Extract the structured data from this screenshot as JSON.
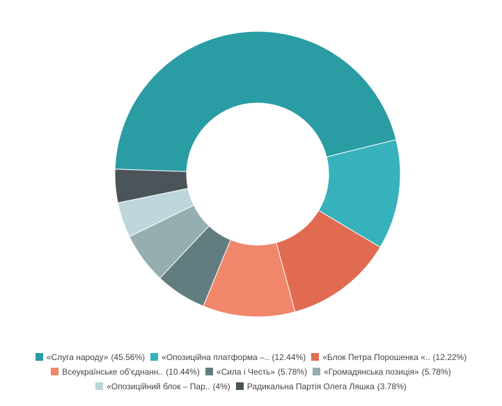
{
  "chart_data": {
    "type": "donut",
    "categories": [
      "«Слуга народу»",
      "«Опозиційна платформа –..",
      "«Блок Петра Порошенка «..",
      "Всеукраїнське об'єднанн..",
      "«Сила і Честь»",
      "«Громадянська позиція»",
      "«Опозиційний блок – Пар..",
      "Радикальна Партія Олега Ляшка"
    ],
    "values": [
      45.56,
      12.44,
      12.22,
      10.44,
      5.78,
      5.78,
      4,
      3.78
    ],
    "value_labels": [
      "(45.56%)",
      "(12.44%)",
      "(12.22%)",
      "(10.44%)",
      "(5.78%)",
      "(5.78%)",
      "(4%)",
      "(3.78%)"
    ],
    "colors": [
      "#2a9ca4",
      "#37b2bc",
      "#e06b50",
      "#f0866a",
      "#627d80",
      "#96aeb0",
      "#bcd6dc",
      "#4a5459"
    ]
  }
}
